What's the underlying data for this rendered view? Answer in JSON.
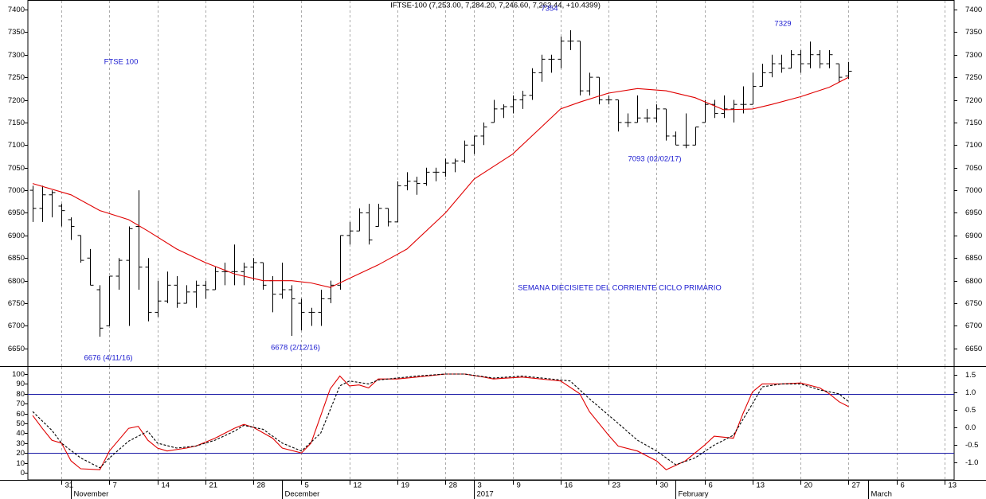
{
  "chart_data": [
    {
      "type": "ohlc",
      "title": "IFTSE-100 (7,253.00, 7,284.20, 7,246.60, 7,263.44, +10.4399)",
      "color": "#000000",
      "xlim": [
        -0.5,
        96
      ],
      "xticks": [
        {
          "value": 3,
          "label": "31"
        },
        {
          "value": 8,
          "label": "7"
        },
        {
          "value": 13,
          "label": "14"
        },
        {
          "value": 18,
          "label": "21"
        },
        {
          "value": 23,
          "label": "28"
        },
        {
          "value": 28,
          "label": "5"
        },
        {
          "value": 33,
          "label": "12"
        },
        {
          "value": 38,
          "label": "19"
        },
        {
          "value": 43,
          "label": "28"
        },
        {
          "value": 46,
          "label": "3"
        },
        {
          "value": 50,
          "label": "9"
        },
        {
          "value": 55,
          "label": "16"
        },
        {
          "value": 60,
          "label": "23"
        },
        {
          "value": 65,
          "label": "30"
        },
        {
          "value": 70,
          "label": "6"
        },
        {
          "value": 75,
          "label": "13"
        },
        {
          "value": 80,
          "label": "20"
        },
        {
          "value": 85,
          "label": "27"
        },
        {
          "value": 90,
          "label": "6"
        },
        {
          "value": 95,
          "label": "13"
        }
      ],
      "month_ticks": [
        {
          "value": 4,
          "label": "November"
        },
        {
          "value": 26,
          "label": "December"
        },
        {
          "value": 46,
          "label": "2017"
        },
        {
          "value": 67,
          "label": "February"
        },
        {
          "value": 87,
          "label": "March"
        }
      ],
      "ylim": [
        6611,
        7421
      ],
      "yticks": [
        6650,
        6700,
        6750,
        6800,
        6850,
        6900,
        6950,
        7000,
        7050,
        7100,
        7150,
        7200,
        7250,
        7300,
        7350,
        7400
      ],
      "grid": true,
      "open": [
        7000,
        6960,
        6990,
        6965,
        6935,
        6900,
        6850,
        6780,
        6700,
        6810,
        6845,
        6920,
        6830,
        6730,
        6755,
        6790,
        6750,
        6775,
        6790,
        6780,
        6820,
        6820,
        6820,
        6830,
        6840,
        6800,
        6770,
        6780,
        6750,
        6730,
        6730,
        6760,
        6790,
        6900,
        6910,
        6950,
        6920,
        6960,
        6930,
        7010,
        7020,
        7015,
        7040,
        7040,
        7060,
        7065,
        7100,
        7120,
        7150,
        7180,
        7185,
        7200,
        7210,
        7260,
        7290,
        7290,
        7330,
        7330,
        7220,
        7250,
        7200,
        7200,
        7150,
        7150,
        7160,
        7160,
        7180,
        7120,
        7100,
        7100,
        7150,
        7190,
        7170,
        7180,
        7190,
        7190,
        7230,
        7260,
        7280,
        7270,
        7300,
        7280,
        7300,
        7280,
        7280,
        7253
      ],
      "high": [
        7010,
        7010,
        7000,
        6970,
        6940,
        6900,
        6870,
        6790,
        6810,
        6850,
        6920,
        7000,
        6850,
        6800,
        6820,
        6810,
        6790,
        6800,
        6800,
        6830,
        6840,
        6880,
        6840,
        6850,
        6840,
        6810,
        6840,
        6790,
        6760,
        6740,
        6780,
        6800,
        6900,
        6930,
        6960,
        6970,
        6970,
        6960,
        7020,
        7040,
        7030,
        7050,
        7050,
        7070,
        7070,
        7110,
        7120,
        7150,
        7200,
        7190,
        7210,
        7220,
        7270,
        7300,
        7300,
        7340,
        7354,
        7330,
        7260,
        7250,
        7210,
        7200,
        7170,
        7210,
        7180,
        7190,
        7180,
        7130,
        7170,
        7140,
        7200,
        7200,
        7210,
        7200,
        7230,
        7260,
        7280,
        7300,
        7300,
        7310,
        7310,
        7329,
        7310,
        7310,
        7280,
        7284.2
      ],
      "low": [
        6930,
        6930,
        6940,
        6920,
        6890,
        6840,
        6790,
        6676,
        6700,
        6780,
        6700,
        6780,
        6710,
        6720,
        6750,
        6740,
        6750,
        6740,
        6760,
        6780,
        6790,
        6790,
        6790,
        6800,
        6780,
        6730,
        6760,
        6678,
        6690,
        6700,
        6700,
        6750,
        6780,
        6880,
        6910,
        6880,
        6920,
        6920,
        6930,
        7000,
        6990,
        7010,
        7020,
        7030,
        7040,
        7060,
        7080,
        7100,
        7150,
        7160,
        7170,
        7180,
        7200,
        7240,
        7260,
        7270,
        7310,
        7210,
        7210,
        7190,
        7190,
        7130,
        7140,
        7150,
        7150,
        7150,
        7110,
        7100,
        7093,
        7100,
        7150,
        7160,
        7160,
        7150,
        7170,
        7190,
        7230,
        7250,
        7260,
        7270,
        7260,
        7270,
        7270,
        7270,
        7240,
        7246.6
      ],
      "close": [
        6960,
        6990,
        6995,
        6955,
        6920,
        6845,
        6790,
        6695,
        6810,
        6845,
        6915,
        6830,
        6730,
        6755,
        6790,
        6750,
        6775,
        6790,
        6780,
        6820,
        6820,
        6820,
        6830,
        6840,
        6790,
        6770,
        6780,
        6760,
        6730,
        6730,
        6760,
        6790,
        6900,
        6910,
        6950,
        6890,
        6960,
        6930,
        7010,
        7020,
        7015,
        7040,
        7040,
        7060,
        7065,
        7100,
        7120,
        7140,
        7180,
        7185,
        7200,
        7210,
        7260,
        7290,
        7290,
        7330,
        7330,
        7220,
        7250,
        7200,
        7200,
        7150,
        7150,
        7160,
        7160,
        7180,
        7120,
        7100,
        7100,
        7140,
        7190,
        7170,
        7180,
        7190,
        7190,
        7230,
        7260,
        7280,
        7270,
        7300,
        7280,
        7300,
        7280,
        7300,
        7250,
        7263.44
      ],
      "overlays": [
        {
          "color": "#e00000",
          "x": [
            0,
            4,
            7,
            10,
            12,
            15,
            18,
            21,
            24,
            27,
            29,
            31,
            33,
            36,
            39,
            43,
            46,
            50,
            53,
            55,
            57,
            60,
            63,
            66,
            69,
            72,
            75,
            77,
            80,
            83,
            85
          ],
          "values": [
            7015,
            6990,
            6955,
            6935,
            6910,
            6870,
            6840,
            6815,
            6800,
            6800,
            6795,
            6785,
            6805,
            6835,
            6870,
            6950,
            7025,
            7080,
            7140,
            7180,
            7195,
            7215,
            7225,
            7220,
            7205,
            7178,
            7180,
            7190,
            7207,
            7228,
            7250
          ]
        }
      ],
      "annotations": [
        "FTSE 100",
        "7354",
        "7329",
        "7093 (02/02/17)",
        "SEMANA DIECISIETE DEL CORRIENTE CICLO PRIMARIO",
        "6676 (4/11/16)",
        "6678 (2/12/16)"
      ]
    },
    {
      "type": "line",
      "xlim": [
        -0.5,
        96
      ],
      "ylim": [
        -7.3,
        108.1
      ],
      "yticks": [
        0,
        10,
        20,
        30,
        40,
        50,
        60,
        70,
        80,
        90,
        100
      ],
      "y2lim": [
        -1.5,
        1.75
      ],
      "y2ticks": [
        1.5,
        {
          "value": 1,
          "label": "1.0"
        },
        0.5,
        {
          "value": 0,
          "label": "0.0"
        },
        -0.5,
        {
          "value": -1,
          "label": "-1.0"
        }
      ],
      "hlines": [
        80,
        20
      ],
      "hline_color": "#1a1aa6",
      "series": [
        {
          "color": "#e00000",
          "dashed": false,
          "x": [
            0,
            1,
            2,
            3,
            4,
            5,
            7,
            8,
            10,
            11,
            12,
            13,
            14,
            16,
            17,
            19,
            21,
            22,
            23,
            25,
            26,
            28,
            29,
            31,
            32,
            33,
            34,
            35,
            36,
            38,
            40,
            43,
            45,
            47,
            48,
            51,
            54,
            55,
            57,
            58,
            60,
            61,
            63,
            65,
            66,
            68,
            70,
            71,
            73,
            74,
            75,
            76,
            78,
            80,
            82,
            83,
            84,
            85
          ],
          "values": [
            58,
            45,
            33,
            30,
            12,
            4,
            3,
            22,
            45,
            47,
            33,
            25,
            22,
            25,
            27,
            35,
            45,
            49,
            46,
            35,
            25,
            20,
            30,
            85,
            98,
            88,
            89,
            86,
            95,
            95,
            97,
            100,
            100,
            97,
            95,
            97,
            94,
            93,
            80,
            62,
            38,
            27,
            22,
            12,
            3,
            12,
            28,
            37,
            35,
            60,
            82,
            90,
            90,
            91,
            86,
            80,
            72,
            67
          ]
        },
        {
          "color": "#000000",
          "dashed": true,
          "x": [
            0,
            2,
            3,
            5,
            7,
            8,
            10,
            12,
            13,
            15,
            17,
            19,
            21,
            22,
            24,
            26,
            28,
            30,
            32,
            33,
            35,
            36,
            40,
            43,
            45,
            48,
            51,
            54,
            56,
            58,
            61,
            63,
            65,
            67,
            69,
            71,
            73,
            75,
            76,
            78,
            80,
            82,
            84,
            85
          ],
          "values": [
            62,
            43,
            30,
            15,
            5,
            15,
            32,
            42,
            30,
            25,
            27,
            33,
            42,
            48,
            44,
            30,
            22,
            40,
            88,
            93,
            90,
            94,
            98,
            100,
            100,
            96,
            98,
            95,
            93,
            75,
            50,
            33,
            22,
            8,
            15,
            28,
            38,
            70,
            87,
            90,
            90,
            84,
            80,
            72
          ]
        }
      ]
    }
  ]
}
